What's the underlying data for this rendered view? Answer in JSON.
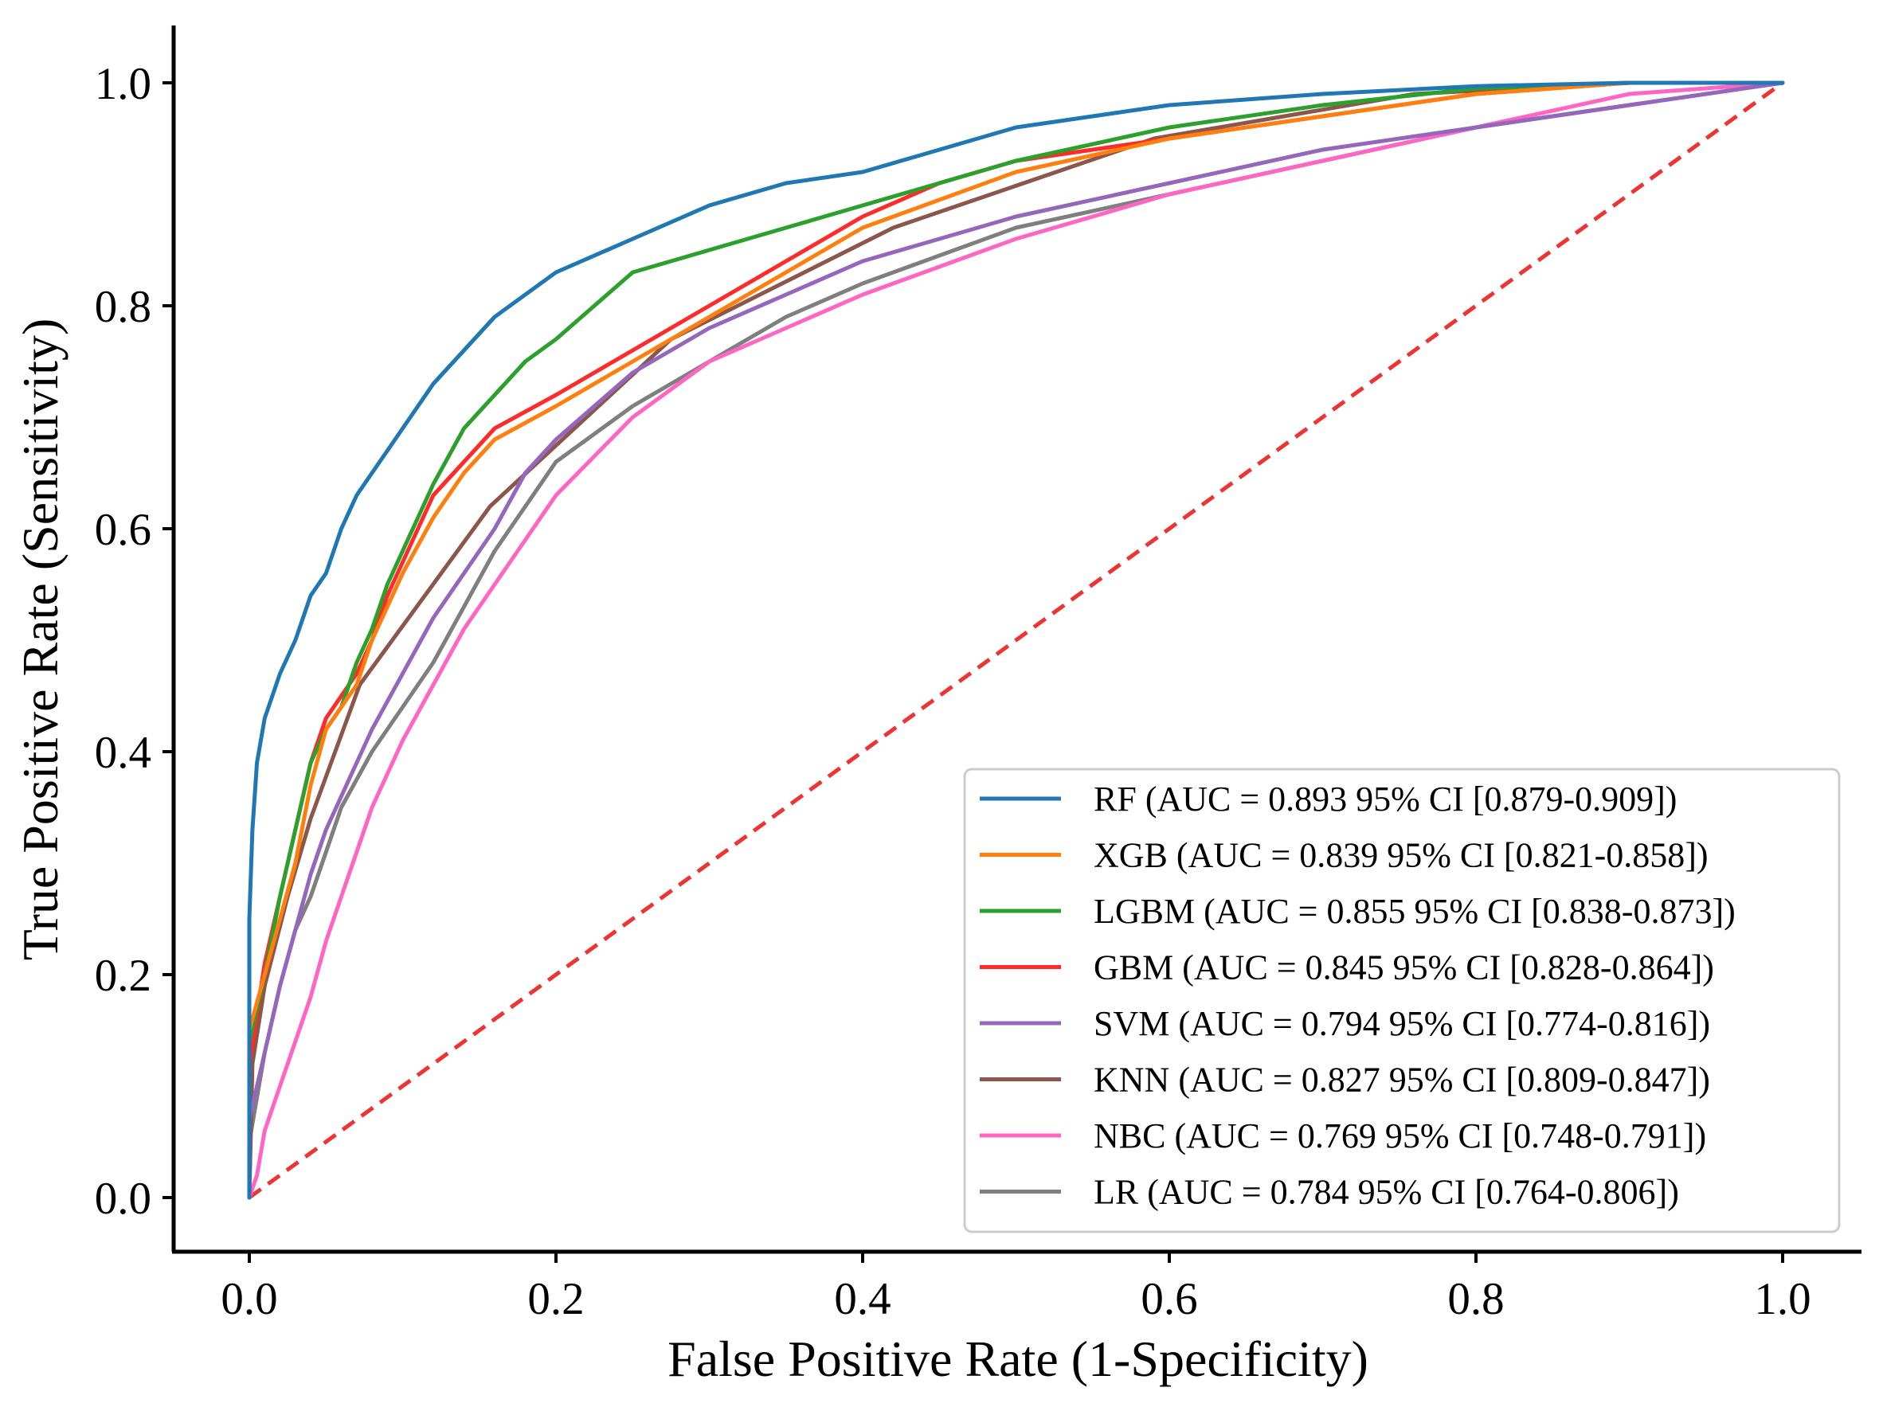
{
  "chart_data": {
    "type": "line",
    "title": "",
    "xlabel": "False Positive Rate (1-Specificity)",
    "ylabel": "True Positive Rate (Sensitivity)",
    "xlim": [
      -0.05,
      1.05
    ],
    "ylim": [
      -0.05,
      1.05
    ],
    "xticks": [
      0.0,
      0.2,
      0.4,
      0.6,
      0.8,
      1.0
    ],
    "yticks": [
      0.0,
      0.2,
      0.4,
      0.6,
      0.8,
      1.0
    ],
    "xtick_labels": [
      "0.0",
      "0.2",
      "0.4",
      "0.6",
      "0.8",
      "1.0"
    ],
    "ytick_labels": [
      "0.0",
      "0.2",
      "0.4",
      "0.6",
      "0.8",
      "1.0"
    ],
    "grid": false,
    "legend_position": "lower-right",
    "series": [
      {
        "name": "RF",
        "label": "RF (AUC = 0.893 95% CI [0.879-0.909])",
        "color": "#1f77b4",
        "x": [
          0,
          0,
          0.002,
          0.005,
          0.01,
          0.02,
          0.03,
          0.04,
          0.05,
          0.06,
          0.07,
          0.08,
          0.09,
          0.1,
          0.12,
          0.14,
          0.16,
          0.18,
          0.2,
          0.25,
          0.3,
          0.35,
          0.4,
          0.45,
          0.5,
          0.6,
          0.7,
          0.8,
          0.9,
          1.0
        ],
        "y": [
          0,
          0.25,
          0.33,
          0.39,
          0.43,
          0.47,
          0.5,
          0.54,
          0.56,
          0.6,
          0.63,
          0.65,
          0.67,
          0.69,
          0.73,
          0.76,
          0.79,
          0.81,
          0.83,
          0.86,
          0.89,
          0.91,
          0.92,
          0.94,
          0.96,
          0.98,
          0.99,
          0.997,
          1.0,
          1.0
        ]
      },
      {
        "name": "XGB",
        "label": "XGB (AUC = 0.839 95% CI [0.821-0.858])",
        "color": "#ff7f0e",
        "x": [
          0,
          0,
          0.01,
          0.02,
          0.03,
          0.04,
          0.05,
          0.06,
          0.07,
          0.08,
          0.09,
          0.1,
          0.12,
          0.14,
          0.16,
          0.2,
          0.25,
          0.3,
          0.35,
          0.4,
          0.5,
          0.6,
          0.7,
          0.8,
          0.9,
          1.0
        ],
        "y": [
          0,
          0.15,
          0.2,
          0.25,
          0.3,
          0.37,
          0.42,
          0.44,
          0.46,
          0.5,
          0.53,
          0.56,
          0.61,
          0.65,
          0.68,
          0.71,
          0.75,
          0.79,
          0.83,
          0.87,
          0.92,
          0.95,
          0.97,
          0.99,
          1.0,
          1.0
        ]
      },
      {
        "name": "LGBM",
        "label": "LGBM (AUC = 0.855 95% CI [0.838-0.873])",
        "color": "#2ca02c",
        "x": [
          0,
          0,
          0.01,
          0.02,
          0.03,
          0.04,
          0.05,
          0.06,
          0.07,
          0.08,
          0.09,
          0.1,
          0.12,
          0.14,
          0.16,
          0.18,
          0.2,
          0.25,
          0.3,
          0.35,
          0.4,
          0.5,
          0.6,
          0.7,
          0.8,
          0.9,
          1.0
        ],
        "y": [
          0,
          0.14,
          0.2,
          0.27,
          0.33,
          0.39,
          0.42,
          0.44,
          0.48,
          0.51,
          0.55,
          0.58,
          0.64,
          0.69,
          0.72,
          0.75,
          0.77,
          0.83,
          0.85,
          0.87,
          0.89,
          0.93,
          0.96,
          0.98,
          0.995,
          1.0,
          1.0
        ]
      },
      {
        "name": "GBM",
        "label": "GBM (AUC = 0.845 95% CI [0.828-0.864])",
        "color": "#ff2a2a",
        "x": [
          0,
          0,
          0.01,
          0.02,
          0.03,
          0.04,
          0.05,
          0.06,
          0.07,
          0.08,
          0.09,
          0.1,
          0.12,
          0.14,
          0.16,
          0.2,
          0.25,
          0.3,
          0.35,
          0.4,
          0.45,
          0.5,
          0.6,
          0.7,
          0.8,
          0.9,
          1.0
        ],
        "y": [
          0,
          0.12,
          0.21,
          0.27,
          0.33,
          0.39,
          0.43,
          0.45,
          0.47,
          0.5,
          0.54,
          0.57,
          0.63,
          0.66,
          0.69,
          0.72,
          0.76,
          0.8,
          0.84,
          0.88,
          0.91,
          0.93,
          0.95,
          0.97,
          0.99,
          1.0,
          1.0
        ]
      },
      {
        "name": "SVM",
        "label": "SVM (AUC = 0.794 95% CI [0.774-0.816])",
        "color": "#9467bd",
        "x": [
          0,
          0,
          0.01,
          0.02,
          0.03,
          0.04,
          0.05,
          0.06,
          0.08,
          0.1,
          0.12,
          0.14,
          0.16,
          0.18,
          0.2,
          0.25,
          0.3,
          0.35,
          0.4,
          0.5,
          0.6,
          0.7,
          0.8,
          0.9,
          1.0
        ],
        "y": [
          0,
          0.07,
          0.13,
          0.19,
          0.24,
          0.29,
          0.33,
          0.36,
          0.42,
          0.47,
          0.52,
          0.56,
          0.6,
          0.65,
          0.68,
          0.74,
          0.78,
          0.81,
          0.84,
          0.88,
          0.91,
          0.94,
          0.96,
          0.98,
          1.0
        ]
      },
      {
        "name": "KNN",
        "label": "KNN (AUC = 0.827 95% CI [0.809-0.847])",
        "color": "#8c564b",
        "x": [
          0,
          0.002,
          0.01,
          0.025,
          0.04,
          0.072,
          0.157,
          0.275,
          0.42,
          0.59,
          0.76,
          0.9,
          1.0
        ],
        "y": [
          0,
          0.12,
          0.19,
          0.27,
          0.34,
          0.46,
          0.62,
          0.77,
          0.87,
          0.95,
          0.99,
          1.0,
          1.0
        ]
      },
      {
        "name": "NBC",
        "label": "NBC (AUC = 0.769 95% CI [0.748-0.791])",
        "color": "#ff66c4",
        "x": [
          0,
          0.005,
          0.01,
          0.02,
          0.03,
          0.04,
          0.05,
          0.06,
          0.07,
          0.08,
          0.09,
          0.1,
          0.12,
          0.14,
          0.16,
          0.18,
          0.2,
          0.25,
          0.3,
          0.35,
          0.4,
          0.5,
          0.6,
          0.7,
          0.8,
          0.9,
          1.0
        ],
        "y": [
          0,
          0.02,
          0.06,
          0.1,
          0.14,
          0.18,
          0.23,
          0.27,
          0.31,
          0.35,
          0.38,
          0.41,
          0.46,
          0.51,
          0.55,
          0.59,
          0.63,
          0.7,
          0.75,
          0.78,
          0.81,
          0.86,
          0.9,
          0.93,
          0.96,
          0.99,
          1.0
        ]
      },
      {
        "name": "LR",
        "label": "LR (AUC = 0.784 95% CI [0.764-0.806])",
        "color": "#7f7f7f",
        "x": [
          0,
          0,
          0.01,
          0.02,
          0.03,
          0.04,
          0.05,
          0.06,
          0.08,
          0.1,
          0.12,
          0.14,
          0.16,
          0.18,
          0.2,
          0.25,
          0.3,
          0.35,
          0.4,
          0.5,
          0.6,
          0.7,
          0.8,
          0.9,
          1.0
        ],
        "y": [
          0,
          0.05,
          0.13,
          0.19,
          0.24,
          0.27,
          0.31,
          0.35,
          0.4,
          0.44,
          0.48,
          0.53,
          0.58,
          0.62,
          0.66,
          0.71,
          0.75,
          0.79,
          0.82,
          0.87,
          0.9,
          0.93,
          0.96,
          0.98,
          1.0
        ]
      }
    ],
    "reference_line": {
      "name": "chance",
      "x": [
        0,
        1
      ],
      "y": [
        0,
        1
      ],
      "color": "#ee3333",
      "style": "dashed"
    }
  }
}
